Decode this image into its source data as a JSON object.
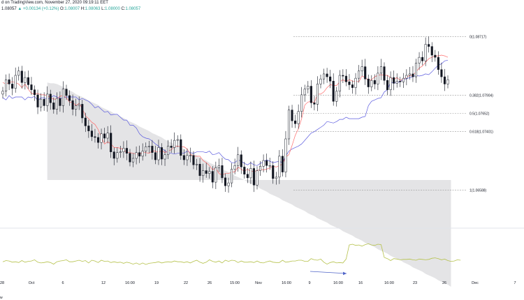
{
  "header": {
    "line1": "d on TradingView.com, November 27, 2020 09:19:11 EET",
    "ohlc": {
      "last": "1.08057",
      "change": "+0.00134 (+0.12%)",
      "o_label": "O:",
      "o": "1.08007",
      "h_label": "H:",
      "h": "1.08063",
      "l_label": "L:",
      "l": "1.08000",
      "c_label": "C:",
      "c": "1.08057"
    }
  },
  "footer_text": "w",
  "colors": {
    "up": "#26a69a",
    "candle_dark": "#131722",
    "tenkan": "#ff6b6b",
    "kijun": "#5b5bdf",
    "cloud": "#d9d9dc",
    "fib": "#9a9a9a",
    "oscillator": "#b5c14a",
    "arrow": "#4f64c8",
    "separator": "#e0e3eb"
  },
  "chart_data": [
    {
      "type": "candlestick",
      "title": "",
      "x_tick_labels": [
        "28",
        "Oct",
        "6",
        "12",
        "16:00",
        "19",
        "22",
        "26",
        "15:00",
        "Nov",
        "16:00",
        "9",
        "16:00",
        "16",
        "16:00",
        "23",
        "26",
        "Dec",
        "7"
      ],
      "ylim": [
        1.0615,
        1.0905
      ],
      "fib_levels": [
        {
          "ratio": "0",
          "price": 1.08717,
          "label": "0(1.08717)"
        },
        {
          "ratio": "0.382",
          "price": 1.07904,
          "label": "0.382(1.07904)"
        },
        {
          "ratio": "0.5",
          "price": 1.07652,
          "label": "0.5(1.07652)"
        },
        {
          "ratio": "0.618",
          "price": 1.07401,
          "label": "0.618(1.07401)"
        },
        {
          "ratio": "1",
          "price": 1.06588,
          "label": "1(1.06588)"
        }
      ],
      "close": [
        1.0796,
        1.0812,
        1.0806,
        1.08,
        1.0818,
        1.0824,
        1.0808,
        1.0815,
        1.0805,
        1.0798,
        1.0791,
        1.0774,
        1.0785,
        1.0776,
        1.0792,
        1.078,
        1.0771,
        1.0786,
        1.0776,
        1.0799,
        1.079,
        1.0783,
        1.0771,
        1.0776,
        1.0778,
        1.0759,
        1.0748,
        1.0741,
        1.0733,
        1.0732,
        1.0725,
        1.0737,
        1.0731,
        1.0738,
        1.0712,
        1.0703,
        1.0711,
        1.0712,
        1.0717,
        1.071,
        1.0698,
        1.0703,
        1.0711,
        1.0706,
        1.0713,
        1.0719,
        1.072,
        1.0711,
        1.0701,
        1.0718,
        1.0702,
        1.0708,
        1.072,
        1.0718,
        1.0728,
        1.0729,
        1.0707,
        1.0701,
        1.0707,
        1.0707,
        1.0694,
        1.0695,
        1.0679,
        1.0686,
        1.0682,
        1.0685,
        1.067,
        1.069,
        1.0693,
        1.0676,
        1.0665,
        1.0669,
        1.0688,
        1.0693,
        1.0708,
        1.0691,
        1.0681,
        1.0676,
        1.0689,
        1.0666,
        1.0686,
        1.0692,
        1.07,
        1.0693,
        1.0693,
        1.0675,
        1.0677,
        1.0706,
        1.0684,
        1.073,
        1.077,
        1.0755,
        1.0751,
        1.0768,
        1.0791,
        1.0799,
        1.0803,
        1.078,
        1.0778,
        1.0806,
        1.0813,
        1.082,
        1.0816,
        1.081,
        1.0782,
        1.0796,
        1.0818,
        1.0817,
        1.0809,
        1.0805,
        1.0801,
        1.0814,
        1.0824,
        1.083,
        1.0813,
        1.0802,
        1.0811,
        1.0806,
        1.0821,
        1.083,
        1.0811,
        1.0798,
        1.0815,
        1.0807,
        1.081,
        1.0809,
        1.0814,
        1.0818,
        1.082,
        1.0816,
        1.0835,
        1.0843,
        1.0838,
        1.0861,
        1.0858,
        1.0846,
        1.0843,
        1.0826,
        1.0816,
        1.0806,
        1.0812
      ],
      "tenkan": [
        1.0808,
        1.0806,
        1.0808,
        1.0809,
        1.0808,
        1.0806,
        1.0801,
        1.0806,
        1.0799,
        1.0793,
        1.0792,
        1.0793,
        1.0791,
        1.0791,
        1.079,
        1.0787,
        1.0785,
        1.0785,
        1.0789,
        1.079,
        1.0787,
        1.0781,
        1.0781,
        1.0776,
        1.0779,
        1.0772,
        1.0762,
        1.0758,
        1.0753,
        1.075,
        1.0743,
        1.0732,
        1.0723,
        1.0726,
        1.0723,
        1.0718,
        1.0718,
        1.0717,
        1.0715,
        1.0711,
        1.0711,
        1.071,
        1.0709,
        1.0709,
        1.0711,
        1.0711,
        1.071,
        1.0713,
        1.0713,
        1.0711,
        1.0714,
        1.0711,
        1.0713,
        1.0715,
        1.0719,
        1.072,
        1.0719,
        1.0719,
        1.0716,
        1.0709,
        1.0706,
        1.0706,
        1.0706,
        1.07,
        1.0697,
        1.0693,
        1.0687,
        1.069,
        1.0682,
        1.068,
        1.0682,
        1.0682,
        1.0684,
        1.0684,
        1.0691,
        1.0688,
        1.0685,
        1.0688,
        1.0685,
        1.0685,
        1.0686,
        1.0688,
        1.0687,
        1.0688,
        1.069,
        1.0692,
        1.0691,
        1.0693,
        1.0695,
        1.0705,
        1.0708,
        1.0721,
        1.0735,
        1.0744,
        1.0758,
        1.0777,
        1.0781,
        1.0782,
        1.078,
        1.0792,
        1.0792,
        1.0795,
        1.0801,
        1.0805,
        1.0804,
        1.0804,
        1.0809,
        1.0812,
        1.0809,
        1.0812,
        1.081,
        1.081,
        1.0809,
        1.0817,
        1.0815,
        1.0811,
        1.0812,
        1.0816,
        1.0818,
        1.0819,
        1.0818,
        1.0818,
        1.0815,
        1.0812,
        1.0815,
        1.0811,
        1.0813,
        1.0815,
        1.0818,
        1.0818,
        1.0823,
        1.0828,
        1.0831,
        1.0836,
        1.0841,
        1.0843,
        1.0845,
        1.0845,
        1.0846,
        1.0845,
        1.0843
      ],
      "kijun": [
        1.0787,
        1.0784,
        1.079,
        1.0786,
        1.0788,
        1.0788,
        1.0788,
        1.0784,
        1.0788,
        1.0787,
        1.0789,
        1.0783,
        1.0787,
        1.0787,
        1.0785,
        1.0787,
        1.079,
        1.0788,
        1.0786,
        1.0787,
        1.0788,
        1.0788,
        1.0788,
        1.0788,
        1.0784,
        1.0786,
        1.0784,
        1.0782,
        1.0778,
        1.0773,
        1.0775,
        1.0771,
        1.0767,
        1.0768,
        1.0763,
        1.0764,
        1.0764,
        1.076,
        1.0756,
        1.0756,
        1.0749,
        1.0749,
        1.0745,
        1.0737,
        1.0733,
        1.0731,
        1.073,
        1.0727,
        1.0723,
        1.072,
        1.0716,
        1.0714,
        1.071,
        1.071,
        1.0709,
        1.071,
        1.071,
        1.071,
        1.0713,
        1.0711,
        1.071,
        1.0712,
        1.0712,
        1.0712,
        1.0711,
        1.0713,
        1.0708,
        1.0709,
        1.0711,
        1.0706,
        1.0702,
        1.0701,
        1.0697,
        1.0697,
        1.0701,
        1.0699,
        1.0696,
        1.0694,
        1.0697,
        1.0694,
        1.0693,
        1.0696,
        1.0698,
        1.0701,
        1.0699,
        1.0697,
        1.0698,
        1.0699,
        1.0697,
        1.0706,
        1.0713,
        1.0716,
        1.0718,
        1.072,
        1.0723,
        1.0728,
        1.0733,
        1.0738,
        1.074,
        1.0743,
        1.0746,
        1.0749,
        1.0754,
        1.0753,
        1.0752,
        1.0754,
        1.0757,
        1.0757,
        1.076,
        1.0758,
        1.0758,
        1.0758,
        1.0758,
        1.076,
        1.0761,
        1.0776,
        1.0782,
        1.0784,
        1.0786,
        1.0787,
        1.0795,
        1.0798,
        1.0809,
        1.0807,
        1.0808,
        1.0809,
        1.0813,
        1.0813,
        1.0815,
        1.0816,
        1.0818,
        1.0817,
        1.0818,
        1.082,
        1.0819,
        1.0823,
        1.0828,
        1.0832,
        1.0834,
        1.0838,
        1.0839
      ],
      "cloud": {
        "x_index_start": 14,
        "upper": [
          1.0808,
          1.0807,
          1.0807,
          1.0806,
          1.0804,
          1.0802,
          1.0799,
          1.0797,
          1.0795,
          1.0792,
          1.079,
          1.0788,
          1.0786,
          1.0783,
          1.0781,
          1.0779,
          1.0777,
          1.0774,
          1.0772,
          1.077,
          1.0768,
          1.0765,
          1.0763,
          1.0761,
          1.0759,
          1.0756,
          1.0754,
          1.0752,
          1.075,
          1.0747,
          1.0745,
          1.0743,
          1.0741,
          1.0738,
          1.0736,
          1.0734,
          1.0732,
          1.0729,
          1.0727,
          1.0725,
          1.0722,
          1.072,
          1.0718,
          1.0716,
          1.0713,
          1.0711,
          1.0709,
          1.0707,
          1.0704,
          1.0702,
          1.07,
          1.0697,
          1.0695,
          1.0693,
          1.0691,
          1.0688,
          1.0686,
          1.0684,
          1.0682,
          1.0679,
          1.0677,
          1.0675,
          1.0673,
          1.067,
          1.0668,
          1.0666,
          1.0664,
          1.0661,
          1.0659,
          1.0657,
          1.0654,
          1.0652,
          1.065,
          1.0648,
          1.0645,
          1.0643,
          1.0641,
          1.0639,
          1.0636,
          1.0634,
          1.0632,
          1.063,
          1.0627,
          1.0625,
          1.0623,
          1.062,
          1.0618,
          1.0616,
          1.0614,
          1.0611,
          1.0609,
          1.0607,
          1.0605,
          1.0602,
          1.06,
          1.0598,
          1.0596,
          1.0593,
          1.0591,
          1.0589,
          1.0586,
          1.0584,
          1.0582,
          1.058,
          1.0577,
          1.0575,
          1.0573,
          1.0571,
          1.0568,
          1.0566,
          1.0564,
          1.0562,
          1.0559,
          1.0557,
          1.0555,
          1.0552,
          1.055,
          1.0548,
          1.0546,
          1.0543,
          1.0541,
          1.0539,
          1.0537,
          1.0534,
          1.0532,
          1.053,
          1.0528,
          1.0525
        ],
        "lower": []
      }
    },
    {
      "type": "line",
      "title": "",
      "x_tick_labels": [],
      "series": [
        {
          "values": [
            30,
            33,
            32,
            29,
            30,
            28,
            33,
            29,
            31,
            32,
            35,
            29,
            27,
            28,
            30,
            28,
            24,
            30,
            32,
            33,
            35,
            30,
            30,
            32,
            34,
            31,
            33,
            27,
            34,
            32,
            28,
            34,
            31,
            32,
            28,
            30,
            28,
            29,
            26,
            29,
            27,
            24,
            27,
            23,
            27,
            23,
            26,
            27,
            28,
            30,
            27,
            29,
            30,
            29,
            32,
            30,
            30,
            28,
            30,
            27,
            31,
            34,
            29,
            26,
            29,
            35,
            31,
            29,
            32,
            27,
            34,
            31,
            34,
            33,
            28,
            32,
            29,
            29,
            30,
            28,
            32,
            28,
            27,
            30,
            32,
            29,
            28,
            28,
            34,
            29,
            30,
            32,
            32,
            34,
            34,
            31,
            31,
            38,
            35,
            34,
            37,
            29,
            24,
            28,
            30,
            27,
            28,
            27,
            37,
            73,
            75,
            72,
            73,
            70,
            74,
            76,
            73,
            72,
            75,
            74,
            41,
            38,
            33,
            38,
            37,
            35,
            36,
            36,
            37,
            35,
            34,
            37,
            36,
            35,
            36,
            39,
            40,
            38,
            35,
            37,
            33,
            31,
            32,
            35,
            34
          ]
        }
      ],
      "ylim": [
        0,
        100
      ]
    }
  ]
}
